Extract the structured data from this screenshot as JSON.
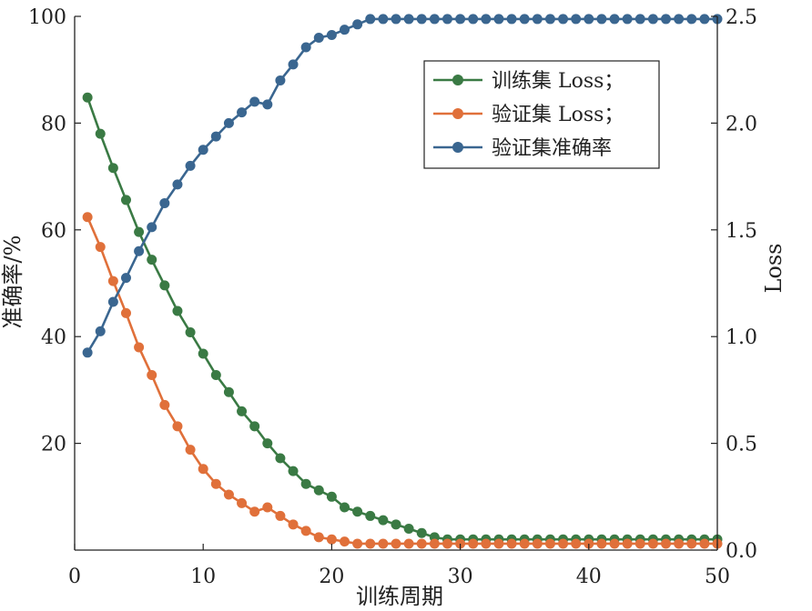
{
  "chart_data": {
    "type": "line",
    "xlabel": "训练周期",
    "ylabel_left": "准确率/%",
    "ylabel_right": "Loss",
    "xlim": [
      0,
      50
    ],
    "ylim_left": [
      0,
      100
    ],
    "ylim_right": [
      0,
      2.5
    ],
    "x_ticks": [
      "0",
      "10",
      "20",
      "30",
      "40",
      "50"
    ],
    "y_left_ticks": [
      "20",
      "40",
      "60",
      "80",
      "100"
    ],
    "y_right_ticks": [
      "0.0",
      "0.5",
      "1.0",
      "1.5",
      "2.0",
      "2.5"
    ],
    "legend_position": "top-right",
    "x": [
      1,
      2,
      3,
      4,
      5,
      6,
      7,
      8,
      9,
      10,
      11,
      12,
      13,
      14,
      15,
      16,
      17,
      18,
      19,
      20,
      21,
      22,
      23,
      24,
      25,
      26,
      27,
      28,
      29,
      30,
      31,
      32,
      33,
      34,
      35,
      36,
      37,
      38,
      39,
      40,
      41,
      42,
      43,
      44,
      45,
      46,
      47,
      48,
      49,
      50
    ],
    "series": [
      {
        "name": "训练集 Loss；",
        "axis": "right",
        "color": "#3a7a44",
        "values": [
          2.12,
          1.95,
          1.79,
          1.64,
          1.49,
          1.36,
          1.24,
          1.12,
          1.02,
          0.92,
          0.82,
          0.74,
          0.65,
          0.58,
          0.5,
          0.43,
          0.37,
          0.31,
          0.28,
          0.25,
          0.2,
          0.18,
          0.16,
          0.14,
          0.12,
          0.1,
          0.08,
          0.06,
          0.05,
          0.05,
          0.05,
          0.05,
          0.05,
          0.05,
          0.05,
          0.05,
          0.05,
          0.05,
          0.05,
          0.05,
          0.05,
          0.05,
          0.05,
          0.05,
          0.05,
          0.05,
          0.05,
          0.05,
          0.05,
          0.05
        ]
      },
      {
        "name": "验证集 Loss；",
        "axis": "right",
        "color": "#e0703a",
        "values": [
          1.56,
          1.42,
          1.26,
          1.11,
          0.95,
          0.82,
          0.68,
          0.58,
          0.47,
          0.38,
          0.31,
          0.26,
          0.22,
          0.18,
          0.2,
          0.16,
          0.12,
          0.09,
          0.06,
          0.05,
          0.04,
          0.03,
          0.03,
          0.03,
          0.03,
          0.03,
          0.03,
          0.03,
          0.03,
          0.03,
          0.03,
          0.03,
          0.03,
          0.03,
          0.03,
          0.03,
          0.03,
          0.03,
          0.03,
          0.03,
          0.03,
          0.03,
          0.03,
          0.03,
          0.03,
          0.03,
          0.03,
          0.03,
          0.03,
          0.03
        ]
      },
      {
        "name": "验证集准确率",
        "axis": "left",
        "color": "#3a6690",
        "values": [
          37,
          41,
          46.5,
          51,
          56,
          60.5,
          65,
          68.5,
          72,
          75,
          77.5,
          80,
          82,
          84,
          83.5,
          88,
          91,
          94.2,
          96,
          96.5,
          97.5,
          98.5,
          99.5,
          99.5,
          99.5,
          99.5,
          99.5,
          99.5,
          99.5,
          99.5,
          99.5,
          99.5,
          99.5,
          99.5,
          99.5,
          99.5,
          99.5,
          99.5,
          99.5,
          99.5,
          99.5,
          99.5,
          99.5,
          99.5,
          99.5,
          99.5,
          99.5,
          99.5,
          99.5,
          99.5
        ]
      }
    ]
  }
}
